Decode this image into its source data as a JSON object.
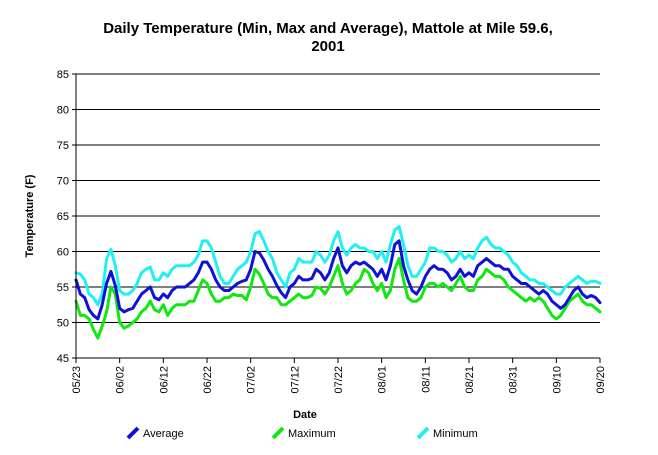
{
  "chart_data": {
    "type": "line",
    "title_lines": [
      "Daily Temperature (Min, Max and Average), Mattole at Mile 59.6,",
      "2001"
    ],
    "xlabel": "Date",
    "ylabel": "Temperature (F)",
    "ylim": [
      45,
      85
    ],
    "yticks": [
      45,
      50,
      55,
      60,
      65,
      70,
      75,
      80,
      85
    ],
    "x_tick_labels": [
      "05/23",
      "06/02",
      "06/12",
      "06/22",
      "07/02",
      "07/12",
      "07/22",
      "08/01",
      "08/11",
      "08/21",
      "08/31",
      "09/10",
      "09/20"
    ],
    "x_start_label": "05/23",
    "day_count": 121,
    "grid": "horizontal",
    "legend_position": "bottom",
    "series": [
      {
        "name": "Average",
        "color": "#1010d8",
        "values": [
          56.0,
          54.0,
          53.5,
          51.8,
          51.0,
          50.5,
          52.5,
          55.5,
          57.2,
          55.2,
          52.0,
          51.5,
          51.8,
          52.0,
          53.0,
          54.0,
          54.5,
          55.0,
          53.5,
          53.2,
          54.0,
          53.5,
          54.5,
          55.0,
          55.0,
          55.0,
          55.5,
          56.0,
          57.0,
          58.5,
          58.5,
          57.5,
          56.0,
          55.0,
          54.5,
          54.5,
          55.0,
          55.5,
          55.8,
          56.0,
          57.5,
          60.0,
          59.8,
          58.8,
          57.5,
          56.5,
          55.2,
          54.2,
          53.5,
          55.0,
          55.5,
          56.5,
          56.0,
          56.0,
          56.2,
          57.5,
          57.0,
          56.0,
          57.0,
          59.0,
          60.5,
          58.0,
          57.0,
          58.0,
          58.5,
          58.2,
          58.5,
          58.0,
          57.5,
          56.5,
          57.5,
          56.0,
          58.0,
          61.0,
          61.5,
          58.0,
          56.0,
          54.5,
          54.0,
          55.0,
          56.5,
          57.5,
          58.0,
          57.5,
          57.5,
          57.0,
          56.0,
          56.5,
          57.5,
          56.5,
          57.0,
          56.5,
          58.0,
          58.5,
          59.0,
          58.5,
          58.0,
          58.0,
          57.5,
          57.5,
          56.5,
          56.0,
          55.5,
          55.5,
          55.0,
          54.5,
          54.0,
          54.5,
          54.0,
          53.0,
          52.5,
          52.0,
          52.5,
          53.5,
          54.5,
          55.0,
          54.0,
          53.5,
          53.8,
          53.5,
          52.8
        ]
      },
      {
        "name": "Maximum",
        "color": "#10e810",
        "values": [
          53.0,
          51.0,
          51.0,
          50.5,
          49.0,
          47.8,
          49.5,
          51.5,
          55.0,
          54.0,
          50.0,
          49.2,
          49.5,
          50.0,
          50.5,
          51.5,
          52.0,
          53.0,
          51.8,
          51.5,
          52.5,
          51.0,
          52.0,
          52.5,
          52.5,
          52.5,
          53.0,
          53.0,
          54.5,
          56.0,
          55.5,
          54.0,
          53.0,
          53.0,
          53.5,
          53.5,
          54.0,
          53.8,
          53.8,
          53.2,
          55.0,
          57.5,
          56.8,
          55.5,
          54.0,
          53.5,
          53.5,
          52.5,
          52.5,
          53.0,
          53.5,
          54.0,
          53.5,
          53.5,
          53.8,
          55.0,
          54.8,
          54.0,
          55.0,
          56.5,
          58.0,
          55.5,
          54.0,
          54.5,
          55.5,
          56.0,
          57.5,
          57.0,
          55.5,
          54.5,
          55.5,
          53.5,
          54.5,
          57.5,
          59.0,
          56.0,
          53.5,
          53.0,
          53.0,
          53.5,
          55.0,
          55.5,
          55.5,
          55.0,
          55.5,
          55.0,
          54.5,
          55.5,
          56.5,
          55.0,
          54.5,
          54.5,
          56.0,
          56.5,
          57.5,
          57.0,
          56.5,
          56.5,
          56.0,
          55.0,
          54.5,
          54.0,
          53.5,
          53.0,
          53.5,
          53.0,
          53.5,
          53.0,
          52.0,
          51.0,
          50.5,
          51.0,
          52.0,
          53.0,
          53.5,
          54.0,
          53.0,
          52.5,
          52.5,
          52.0,
          51.5
        ]
      },
      {
        "name": "Minimum",
        "color": "#20f0f0",
        "values": [
          57.0,
          56.8,
          56.0,
          54.0,
          53.5,
          52.5,
          54.0,
          59.0,
          60.3,
          58.0,
          54.5,
          54.0,
          54.0,
          54.5,
          55.5,
          57.0,
          57.5,
          57.8,
          56.0,
          56.0,
          57.0,
          56.5,
          57.5,
          58.0,
          58.0,
          58.0,
          58.0,
          58.5,
          59.5,
          61.5,
          61.5,
          60.5,
          58.5,
          56.5,
          55.5,
          55.5,
          56.5,
          57.5,
          58.0,
          58.5,
          60.0,
          62.5,
          62.8,
          61.5,
          60.0,
          59.0,
          57.0,
          56.0,
          55.0,
          57.0,
          57.5,
          59.0,
          58.5,
          58.5,
          58.5,
          60.0,
          59.5,
          58.5,
          59.5,
          61.5,
          62.8,
          60.5,
          59.5,
          60.5,
          61.0,
          60.5,
          60.5,
          60.0,
          60.0,
          59.0,
          60.0,
          58.5,
          61.0,
          63.0,
          63.5,
          61.0,
          58.0,
          56.5,
          56.5,
          57.5,
          58.5,
          60.5,
          60.5,
          60.0,
          60.0,
          59.5,
          58.5,
          59.0,
          60.0,
          59.0,
          59.5,
          59.0,
          60.5,
          61.5,
          62.0,
          61.0,
          60.5,
          60.5,
          60.0,
          59.5,
          58.5,
          58.0,
          57.0,
          56.5,
          56.0,
          56.0,
          55.5,
          55.5,
          55.0,
          54.5,
          54.0,
          54.0,
          55.0,
          55.5,
          56.0,
          56.5,
          56.0,
          55.5,
          55.8,
          55.8,
          55.5
        ]
      }
    ]
  }
}
